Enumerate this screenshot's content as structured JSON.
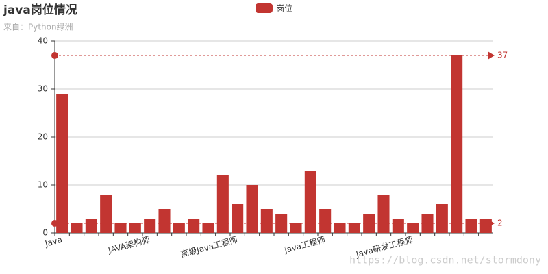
{
  "chart_data": {
    "type": "bar",
    "title": "java岗位情况",
    "subtitle": "来自：Python绿洲",
    "watermark": "https://blog.csdn.net/stormdony",
    "categories": [
      "Java",
      null,
      null,
      null,
      null,
      null,
      "JAVA架构师",
      null,
      null,
      null,
      null,
      null,
      "高级Java工程师",
      null,
      null,
      null,
      null,
      null,
      "java工程师",
      null,
      null,
      null,
      null,
      null,
      "Java研发工程师",
      null,
      null,
      null,
      null,
      null
    ],
    "series": [
      {
        "name": "岗位",
        "color": "#c23531",
        "values": [
          29,
          2,
          3,
          8,
          2,
          2,
          3,
          5,
          2,
          3,
          2,
          12,
          6,
          10,
          5,
          4,
          2,
          13,
          5,
          2,
          2,
          4,
          8,
          3,
          2,
          4,
          6,
          37,
          3,
          3
        ]
      }
    ],
    "mark_lines": [
      {
        "value": 37
      },
      {
        "value": 2
      }
    ],
    "ylim": [
      0,
      40
    ],
    "yticks": [
      0,
      10,
      20,
      30,
      40
    ],
    "grid": true
  }
}
